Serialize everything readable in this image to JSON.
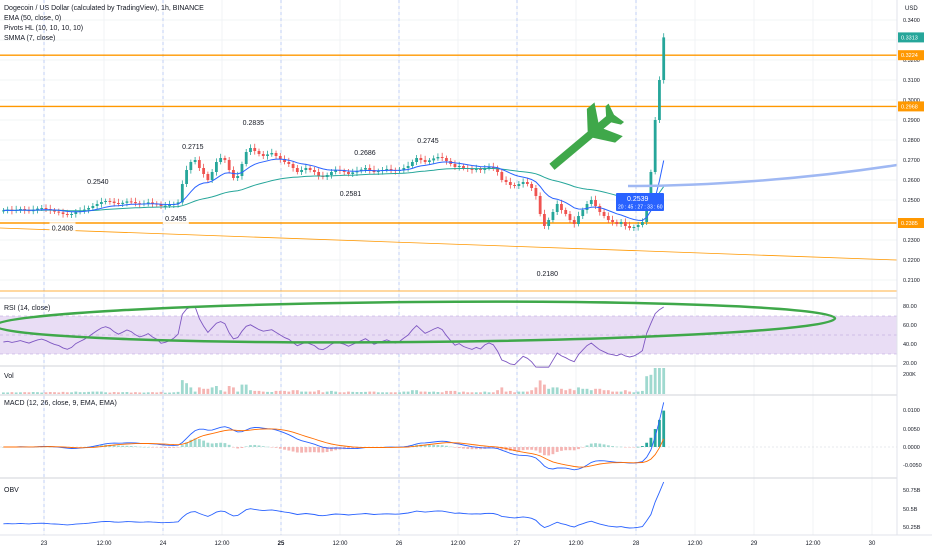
{
  "header": {
    "title": "Dogecoin / US Dollar (calculated by TradingView), 1h, BINANCE",
    "currency": "USD",
    "studies": [
      "EMA (50, close, 0)",
      "Pivots HL (10, 10, 10, 10)",
      "SMMA (7, close)"
    ]
  },
  "colors": {
    "up": "#26a69a",
    "down": "#ef5350",
    "ema": "#26a69a",
    "smma": "#2962ff",
    "level_line": "#ff9800",
    "plane": "#3fa84a",
    "ellipse": "#3fa84a",
    "rsi_line": "#7e57c2",
    "rsi_band": "#e9ddf5",
    "macd_line": "#2962ff",
    "signal_line": "#ff6d00",
    "obv_line": "#2962ff",
    "tag_blue": "#2962ff",
    "grid": "#eef0f3"
  },
  "x_axis": {
    "ticks": [
      "23",
      "12:00",
      "24",
      "12:00",
      "25",
      "12:00",
      "26",
      "12:00",
      "27",
      "12:00",
      "28",
      "12:00",
      "29",
      "12:00",
      "30"
    ],
    "bold": [
      "25"
    ]
  },
  "price_pane": {
    "y_range": [
      0.2,
      0.34
    ],
    "y_ticks": [
      "0.3400",
      "0.3300",
      "0.3200",
      "0.3100",
      "0.3000",
      "0.2900",
      "0.2800",
      "0.2700",
      "0.2600",
      "0.2500",
      "0.2400",
      "0.2300",
      "0.2200",
      "0.2100"
    ],
    "horizontal_levels": [
      0.3224,
      0.2968,
      0.2385
    ],
    "price_tags": [
      {
        "label": "0.3313",
        "value": 0.3313,
        "color": "#26a69a"
      },
      {
        "label": "0.3224",
        "value": 0.3224,
        "color": "#ff9800"
      },
      {
        "label": "0.2968",
        "value": 0.2968,
        "color": "#ff9800"
      },
      {
        "label": "0.2385",
        "value": 0.2385,
        "color": "#ff9800"
      }
    ],
    "cursor_tag": {
      "value": "0.2539",
      "time": "20 : 45 : 27 : 33 : 60"
    },
    "pivot_labels": [
      {
        "label": "0.2540",
        "t": 22.5,
        "v": 0.254,
        "kind": "high"
      },
      {
        "label": "0.2408",
        "t": 14.2,
        "v": 0.2408,
        "kind": "low"
      },
      {
        "label": "0.2715",
        "t": 44.8,
        "v": 0.2715,
        "kind": "high"
      },
      {
        "label": "0.2455",
        "t": 40.8,
        "v": 0.2455,
        "kind": "low"
      },
      {
        "label": "0.2835",
        "t": 59.0,
        "v": 0.2835,
        "kind": "high"
      },
      {
        "label": "0.2686",
        "t": 85.2,
        "v": 0.2686,
        "kind": "high"
      },
      {
        "label": "0.2581",
        "t": 81.8,
        "v": 0.2581,
        "kind": "low"
      },
      {
        "label": "0.2745",
        "t": 100.0,
        "v": 0.2745,
        "kind": "high"
      },
      {
        "label": "0.2180",
        "t": 128.0,
        "v": 0.218,
        "kind": "low"
      }
    ]
  },
  "rsi_pane": {
    "label": "RSI (14, close)",
    "y_ticks": [
      "80.00",
      "60.00",
      "40.00",
      "20.00"
    ],
    "band": [
      30,
      70
    ]
  },
  "vol_pane": {
    "label": "Vol",
    "y_ticks": [
      "200K"
    ]
  },
  "macd_pane": {
    "label": "MACD (12, 26, close, 9, EMA, EMA)",
    "y_ticks": [
      "0.0100",
      "0.0050",
      "0.0000",
      "-0.0050"
    ]
  },
  "obv_pane": {
    "label": "OBV",
    "y_ticks": [
      "50.75B",
      "50.5B",
      "50.25B"
    ]
  },
  "chart_data": {
    "type": "candlestick",
    "title": "Dogecoin / US Dollar (calculated by TradingView), 1h, BINANCE",
    "x_ticks": [
      "23",
      "12:00",
      "24",
      "12:00",
      "25",
      "12:00",
      "26",
      "12:00",
      "27",
      "12:00",
      "28",
      "12:00",
      "29",
      "12:00",
      "30"
    ],
    "ylim": [
      0.2,
      0.34
    ],
    "closes": [
      0.2448,
      0.2452,
      0.2446,
      0.245,
      0.2455,
      0.2449,
      0.2444,
      0.2451,
      0.2457,
      0.246,
      0.2455,
      0.2448,
      0.2442,
      0.2438,
      0.243,
      0.2425,
      0.243,
      0.244,
      0.2446,
      0.2452,
      0.246,
      0.247,
      0.248,
      0.249,
      0.2495,
      0.2492,
      0.2485,
      0.248,
      0.2486,
      0.2493,
      0.249,
      0.2484,
      0.248,
      0.2483,
      0.2488,
      0.2482,
      0.2478,
      0.247,
      0.2472,
      0.2475,
      0.248,
      0.2488,
      0.258,
      0.265,
      0.269,
      0.27,
      0.266,
      0.263,
      0.26,
      0.264,
      0.269,
      0.271,
      0.27,
      0.265,
      0.261,
      0.262,
      0.268,
      0.274,
      0.276,
      0.2745,
      0.273,
      0.272,
      0.2728,
      0.2735,
      0.272,
      0.2705,
      0.269,
      0.268,
      0.266,
      0.264,
      0.265,
      0.266,
      0.265,
      0.264,
      0.262,
      0.2615,
      0.2625,
      0.264,
      0.265,
      0.2645,
      0.264,
      0.263,
      0.2638,
      0.2645,
      0.2652,
      0.266,
      0.265,
      0.264,
      0.2645,
      0.265,
      0.2655,
      0.265,
      0.2645,
      0.265,
      0.266,
      0.267,
      0.269,
      0.271,
      0.27,
      0.269,
      0.2698,
      0.2708,
      0.2715,
      0.271,
      0.2695,
      0.268,
      0.2665,
      0.267,
      0.266,
      0.2655,
      0.265,
      0.2655,
      0.265,
      0.266,
      0.2665,
      0.266,
      0.264,
      0.26,
      0.259,
      0.2575,
      0.257,
      0.258,
      0.259,
      0.258,
      0.256,
      0.252,
      0.243,
      0.237,
      0.24,
      0.244,
      0.248,
      0.245,
      0.243,
      0.24,
      0.238,
      0.242,
      0.245,
      0.248,
      0.25,
      0.247,
      0.244,
      0.242,
      0.24,
      0.239,
      0.238,
      0.239,
      0.237,
      0.236,
      0.2365,
      0.2375,
      0.239,
      0.251,
      0.264,
      0.29,
      0.31,
      0.3313
    ],
    "horizontal_levels": [
      0.3224,
      0.2968,
      0.2385
    ],
    "rsi_band": [
      30,
      70
    ],
    "current_price": 0.3313
  }
}
